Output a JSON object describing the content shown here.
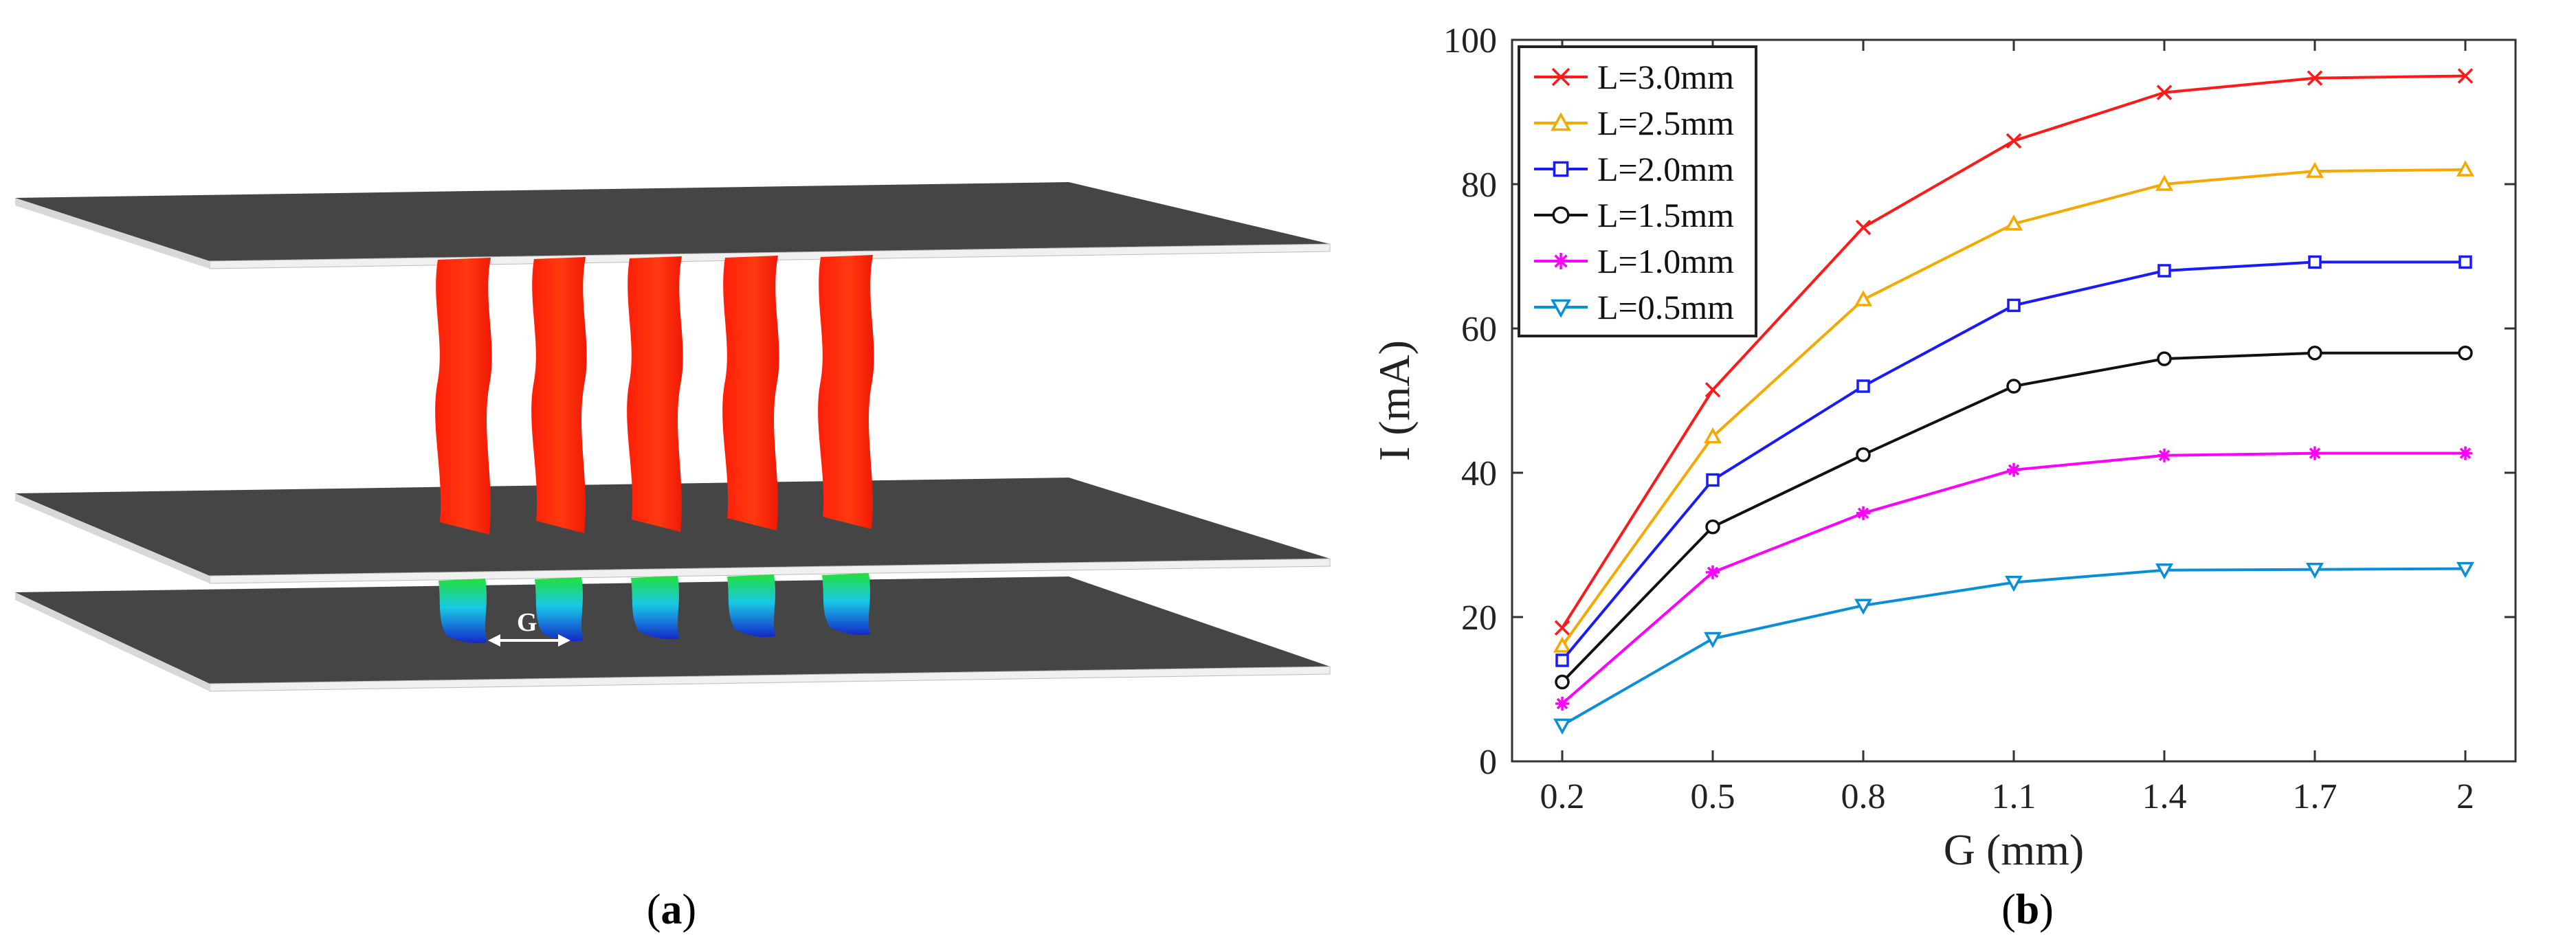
{
  "panel_a": {
    "label_open": "(",
    "label_letter": "a",
    "label_close": ")",
    "gap_label": "G",
    "colors": {
      "plate": "#454545",
      "plate_edge": "#f2f2f2",
      "upper_fiber": "#ff2a0a",
      "lower_fiber_top": "#22e03a",
      "lower_fiber_mid": "#19c8e6",
      "lower_fiber_bottom": "#1428c8"
    }
  },
  "panel_b": {
    "label_open": "(",
    "label_letter": "b",
    "label_close": ")"
  },
  "chart_data": {
    "type": "line",
    "title": "",
    "xlabel": "G (mm)",
    "ylabel": "I (mA)",
    "x": [
      0.2,
      0.5,
      0.8,
      1.1,
      1.4,
      1.7,
      2.0
    ],
    "x_tick_labels": [
      "0.2",
      "0.5",
      "0.8",
      "1.1",
      "1.4",
      "1.7",
      "2"
    ],
    "y_ticks": [
      0,
      20,
      40,
      60,
      80,
      100
    ],
    "y_tick_labels": [
      "0",
      "20",
      "40",
      "60",
      "80",
      "100"
    ],
    "xlim": [
      0.1,
      2.1
    ],
    "ylim": [
      0,
      100
    ],
    "grid": false,
    "legend_position": "top-left",
    "series": [
      {
        "name": "L=3.0mm",
        "color": "#ff1a1a",
        "marker": "x",
        "values": [
          18.5,
          51.5,
          74,
          86,
          92.7,
          94.7,
          95
        ]
      },
      {
        "name": "L=2.5mm",
        "color": "#f5a800",
        "marker": "triangle-up",
        "values": [
          16,
          45,
          64,
          74.5,
          80,
          81.8,
          82
        ]
      },
      {
        "name": "L=2.0mm",
        "color": "#1a1aff",
        "marker": "square",
        "values": [
          14,
          39,
          52,
          63.2,
          68,
          69.2,
          69.2
        ]
      },
      {
        "name": "L=1.5mm",
        "color": "#111111",
        "marker": "circle",
        "values": [
          11,
          32.5,
          42.5,
          52,
          55.8,
          56.6,
          56.6
        ]
      },
      {
        "name": "L=1.0mm",
        "color": "#ff00ff",
        "marker": "asterisk",
        "values": [
          8,
          26.2,
          34.4,
          40.4,
          42.4,
          42.7,
          42.7
        ]
      },
      {
        "name": "L=0.5mm",
        "color": "#0a8fd6",
        "marker": "triangle-down",
        "values": [
          5,
          17,
          21.6,
          24.8,
          26.5,
          26.6,
          26.7
        ]
      }
    ]
  }
}
